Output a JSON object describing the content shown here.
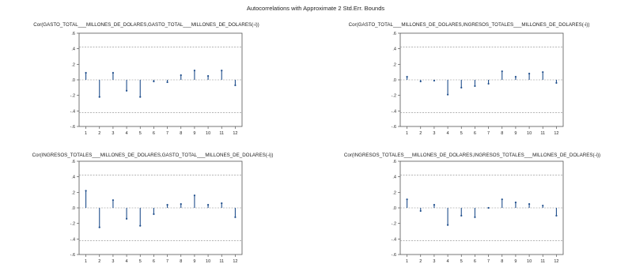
{
  "title": "Autocorrelations with Approximate 2 Std.Err. Bounds",
  "colors": {
    "stem": "#1f4e8c",
    "bound": "#8a8a8a",
    "frame": "#555555",
    "text": "#222222"
  },
  "chart_data": [
    {
      "type": "bar",
      "title": "Cor(GASTO_TOTAL___MILLONES_DE_DOLARES,GASTO_TOTAL___MILLONES_DE_DOLARES(-i))",
      "x": [
        1,
        2,
        3,
        4,
        5,
        6,
        7,
        8,
        9,
        10,
        11,
        12
      ],
      "values": [
        0.09,
        -0.22,
        0.09,
        -0.14,
        -0.22,
        -0.02,
        -0.03,
        0.06,
        0.12,
        0.05,
        0.12,
        -0.07
      ],
      "ylim": [
        -0.6,
        0.6
      ],
      "yticks": [
        0.6,
        0.4,
        0.2,
        0.0,
        -0.2,
        -0.4,
        -0.6
      ],
      "ytick_labels": [
        ".6",
        ".4",
        ".2",
        ".0",
        "-.2",
        "-.4",
        "-.6"
      ],
      "bounds": [
        0.42,
        -0.42
      ],
      "zero_line": true
    },
    {
      "type": "bar",
      "title": "Cor(GASTO_TOTAL___MILLONES_DE_DOLARES,INGRESOS_TOTALES___MILLONES_DE_DOLARES(-i))",
      "x": [
        1,
        2,
        3,
        4,
        5,
        6,
        7,
        8,
        9,
        10,
        11,
        12
      ],
      "values": [
        0.04,
        -0.02,
        -0.01,
        -0.19,
        -0.1,
        -0.08,
        -0.05,
        0.11,
        0.04,
        0.08,
        0.1,
        -0.04
      ],
      "ylim": [
        -0.6,
        0.6
      ],
      "yticks": [
        0.6,
        0.4,
        0.2,
        0.0,
        -0.2,
        -0.4,
        -0.6
      ],
      "ytick_labels": [
        ".6",
        ".4",
        ".2",
        ".0",
        "-.2",
        "-.4",
        "-.6"
      ],
      "bounds": [
        0.42,
        -0.42
      ],
      "zero_line": true
    },
    {
      "type": "bar",
      "title": "Cor(INGRESOS_TOTALES___MILLONES_DE_DOLARES,GASTO_TOTAL___MILLONES_DE_DOLARES(-i))",
      "x": [
        1,
        2,
        3,
        4,
        5,
        6,
        7,
        8,
        9,
        10,
        11,
        12
      ],
      "values": [
        0.22,
        -0.25,
        0.1,
        -0.14,
        -0.23,
        -0.08,
        0.04,
        0.05,
        0.16,
        0.04,
        0.06,
        -0.12
      ],
      "ylim": [
        -0.6,
        0.6
      ],
      "yticks": [
        0.6,
        0.4,
        0.2,
        0.0,
        -0.2,
        -0.4,
        -0.6
      ],
      "ytick_labels": [
        ".6",
        ".4",
        ".2",
        ".0",
        "-.2",
        "-.4",
        "-.6"
      ],
      "bounds": [
        0.42,
        -0.42
      ],
      "zero_line": true
    },
    {
      "type": "bar",
      "title": "Cor(INGRESOS_TOTALES___MILLONES_DE_DOLARES,INGRESOS_TOTALES___MILLONES_DE_DOLARES(-i))",
      "x": [
        1,
        2,
        3,
        4,
        5,
        6,
        7,
        8,
        9,
        10,
        11,
        12
      ],
      "values": [
        0.11,
        -0.04,
        0.04,
        -0.22,
        -0.1,
        -0.12,
        0.0,
        0.11,
        0.07,
        0.05,
        0.03,
        -0.1
      ],
      "ylim": [
        -0.6,
        0.6
      ],
      "yticks": [
        0.6,
        0.4,
        0.2,
        0.0,
        -0.2,
        -0.4,
        -0.6
      ],
      "ytick_labels": [
        ".6",
        ".4",
        ".2",
        ".0",
        "-.2",
        "-.4",
        "-.6"
      ],
      "bounds": [
        0.42,
        -0.42
      ],
      "zero_line": true
    }
  ]
}
